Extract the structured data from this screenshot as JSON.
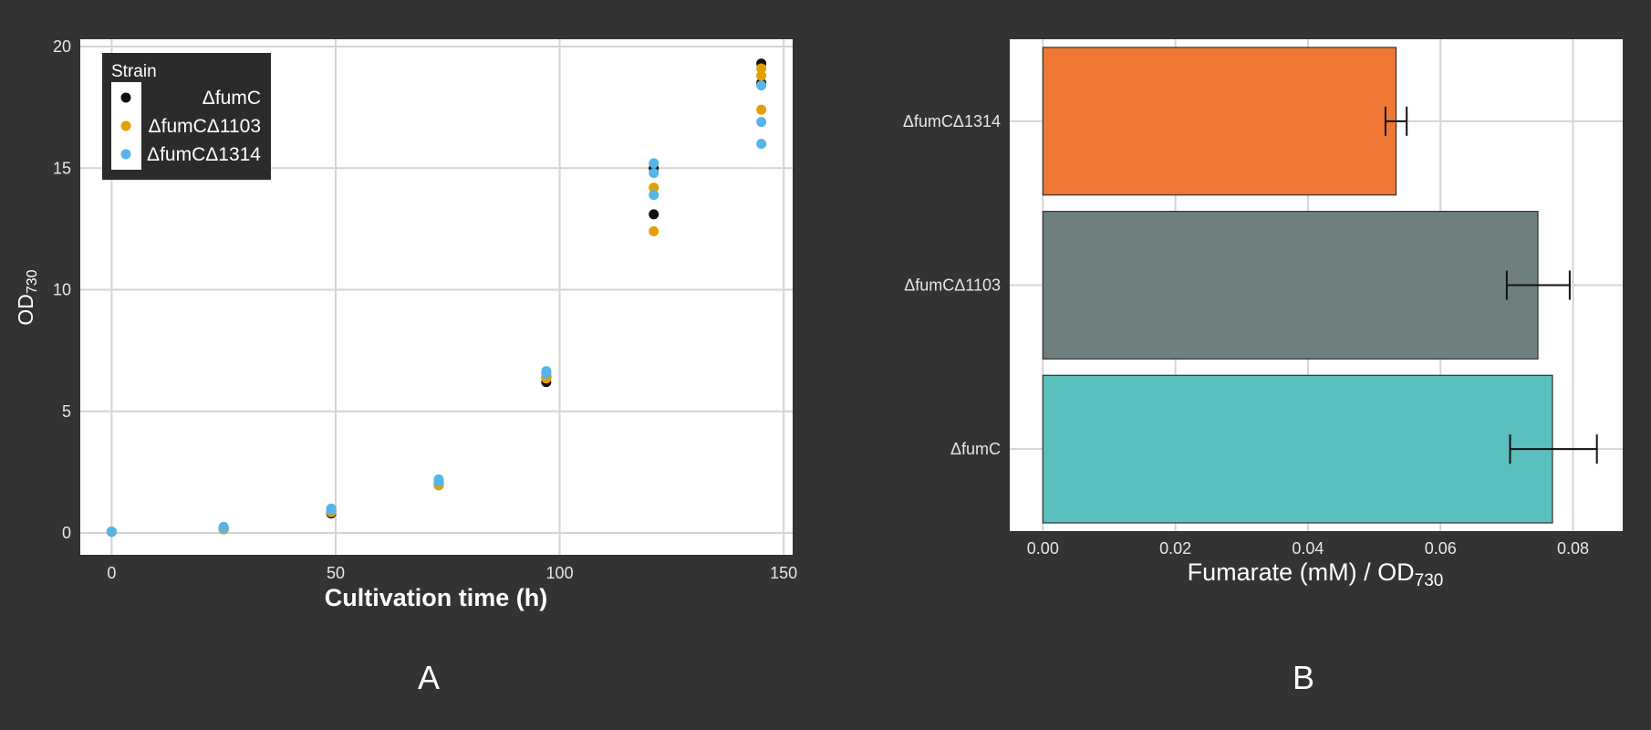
{
  "panels": {
    "a_label": "A",
    "b_label": "B"
  },
  "colors": {
    "background": "#333333",
    "panel": "#ffffff",
    "grid": "#d4d4d4"
  },
  "chart_data": [
    {
      "type": "scatter",
      "title": "",
      "xlabel": "Cultivation time (h)",
      "ylabel": {
        "main": "OD",
        "sub": "730"
      },
      "xlim": [
        -7,
        152
      ],
      "ylim": [
        -0.9,
        20.3
      ],
      "xticks": [
        0,
        50,
        100,
        150
      ],
      "yticks": [
        0,
        5,
        10,
        15,
        20
      ],
      "grid": true,
      "legend": {
        "title": "Strain",
        "placement": "top-left"
      },
      "series": [
        {
          "name": "ΔfumC",
          "color": "#111111",
          "points": [
            [
              0,
              0.05
            ],
            [
              0,
              0.05
            ],
            [
              25,
              0.15
            ],
            [
              25,
              0.2
            ],
            [
              49,
              0.8
            ],
            [
              49,
              0.9
            ],
            [
              73,
              2.0
            ],
            [
              73,
              2.1
            ],
            [
              97,
              6.2
            ],
            [
              97,
              6.4
            ],
            [
              121,
              13.1
            ],
            [
              121,
              15.0
            ],
            [
              145,
              18.5
            ],
            [
              145,
              19.3
            ]
          ]
        },
        {
          "name": "ΔfumCΔ1103",
          "color": "#e69f00",
          "points": [
            [
              0,
              0.05
            ],
            [
              0,
              0.05
            ],
            [
              25,
              0.2
            ],
            [
              25,
              0.15
            ],
            [
              49,
              0.85
            ],
            [
              49,
              0.95
            ],
            [
              73,
              1.95
            ],
            [
              73,
              2.05
            ],
            [
              97,
              6.35
            ],
            [
              97,
              6.5
            ],
            [
              121,
              12.4
            ],
            [
              121,
              14.2
            ],
            [
              145,
              17.4
            ],
            [
              145,
              19.1
            ],
            [
              145,
              18.8
            ]
          ]
        },
        {
          "name": "ΔfumCΔ1314",
          "color": "#56b4e9",
          "points": [
            [
              0,
              0.05
            ],
            [
              0,
              0.05
            ],
            [
              25,
              0.25
            ],
            [
              25,
              0.2
            ],
            [
              49,
              0.95
            ],
            [
              49,
              1.0
            ],
            [
              73,
              2.1
            ],
            [
              73,
              2.2
            ],
            [
              97,
              6.55
            ],
            [
              97,
              6.65
            ],
            [
              121,
              13.9
            ],
            [
              121,
              14.8
            ],
            [
              121,
              15.2
            ],
            [
              145,
              16.0
            ],
            [
              145,
              16.9
            ],
            [
              145,
              18.4
            ]
          ]
        }
      ]
    },
    {
      "type": "bar",
      "orientation": "horizontal",
      "title": "",
      "xlabel": {
        "main": "Fumarate (mM) / OD",
        "sub": "730"
      },
      "ylabel": "",
      "xlim": [
        -0.005,
        0.0875
      ],
      "xticks": [
        0.0,
        0.02,
        0.04,
        0.06,
        0.08
      ],
      "xtick_labels": [
        "0.00",
        "0.02",
        "0.04",
        "0.06",
        "0.08"
      ],
      "grid": true,
      "categories": [
        "ΔfumCΔ1314",
        "ΔfumCΔ1103",
        "ΔfumC"
      ],
      "values": [
        0.0533,
        0.0747,
        0.0769
      ],
      "error_low": [
        0.0517,
        0.07,
        0.0705
      ],
      "error_high": [
        0.0549,
        0.0795,
        0.0836
      ],
      "bar_colors": [
        "#ee7733",
        "#6e7f80",
        "#5bbfbd"
      ]
    }
  ]
}
